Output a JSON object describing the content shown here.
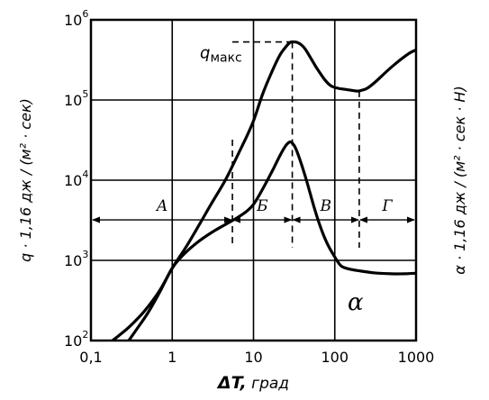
{
  "chart_data": {
    "type": "line",
    "scale": {
      "x": "log",
      "y_left": "log",
      "y_right": "log"
    },
    "xlim": [
      0.1,
      1000
    ],
    "ylim": [
      100,
      1000000
    ],
    "grid": true,
    "x_ticks": [
      {
        "value": 0.1,
        "label": "0,1"
      },
      {
        "value": 1,
        "label": "1"
      },
      {
        "value": 10,
        "label": "10"
      },
      {
        "value": 100,
        "label": "100"
      },
      {
        "value": 1000,
        "label": "1000"
      }
    ],
    "y_ticks": [
      {
        "value": 100,
        "base": "10",
        "exp": "2"
      },
      {
        "value": 1000,
        "base": "10",
        "exp": "3"
      },
      {
        "value": 10000,
        "base": "10",
        "exp": "4"
      },
      {
        "value": 100000,
        "base": "10",
        "exp": "5"
      },
      {
        "value": 1000000,
        "base": "10",
        "exp": "6"
      }
    ],
    "xlabel_symbol": "ΔT,",
    "xlabel_unit": " град",
    "ylabel_left": "q · 1,16 дж / (м² · сек)",
    "ylabel_right": "α · 1,16 дж / (м² · сек · Н)",
    "series": [
      {
        "key": "q",
        "x": [
          0.1,
          0.15,
          0.22,
          0.3,
          0.45,
          0.7,
          1.0,
          1.5,
          2.2,
          3.0,
          4.5,
          6.0,
          8.0,
          10,
          13,
          17,
          21,
          25,
          28,
          30,
          35,
          42,
          50,
          60,
          75,
          90,
          110,
          140,
          180,
          200,
          250,
          320,
          420,
          550,
          700,
          850,
          1000
        ],
        "y": [
          60,
          85,
          115,
          150,
          230,
          420,
          800,
          1500,
          2900,
          5000,
          10000,
          18000,
          33000,
          55000,
          120000,
          230000,
          360000,
          460000,
          520000,
          530000,
          520000,
          450000,
          340000,
          250000,
          180000,
          150000,
          140000,
          135000,
          130000,
          130000,
          140000,
          170000,
          220000,
          280000,
          340000,
          390000,
          420000
        ]
      },
      {
        "key": "alpha",
        "x": [
          0.25,
          0.35,
          0.5,
          0.7,
          1.0,
          1.4,
          2.0,
          3.0,
          4.5,
          6.0,
          8.0,
          10,
          13,
          17,
          21,
          25,
          28,
          30,
          33,
          38,
          45,
          55,
          65,
          80,
          100,
          120,
          150,
          200,
          300,
          500,
          700,
          1000
        ],
        "y": [
          80,
          130,
          220,
          400,
          800,
          1200,
          1650,
          2200,
          2800,
          3300,
          4000,
          5000,
          7800,
          13000,
          20000,
          27000,
          30000,
          29000,
          25000,
          17000,
          9800,
          4800,
          2800,
          1650,
          1100,
          850,
          780,
          740,
          700,
          680,
          680,
          690
        ]
      }
    ],
    "curve_labels": {
      "q": {
        "base": "q",
        "sub": "макс"
      },
      "alpha": "α"
    },
    "q_max": {
      "x": 30,
      "y": 530000
    },
    "minimum": {
      "x": 200,
      "y": 130000
    },
    "region_boundaries_x": [
      5.5,
      30,
      200
    ],
    "region_arrow_y": 3200,
    "regions": [
      "А",
      "Б",
      "В",
      "Г"
    ]
  }
}
